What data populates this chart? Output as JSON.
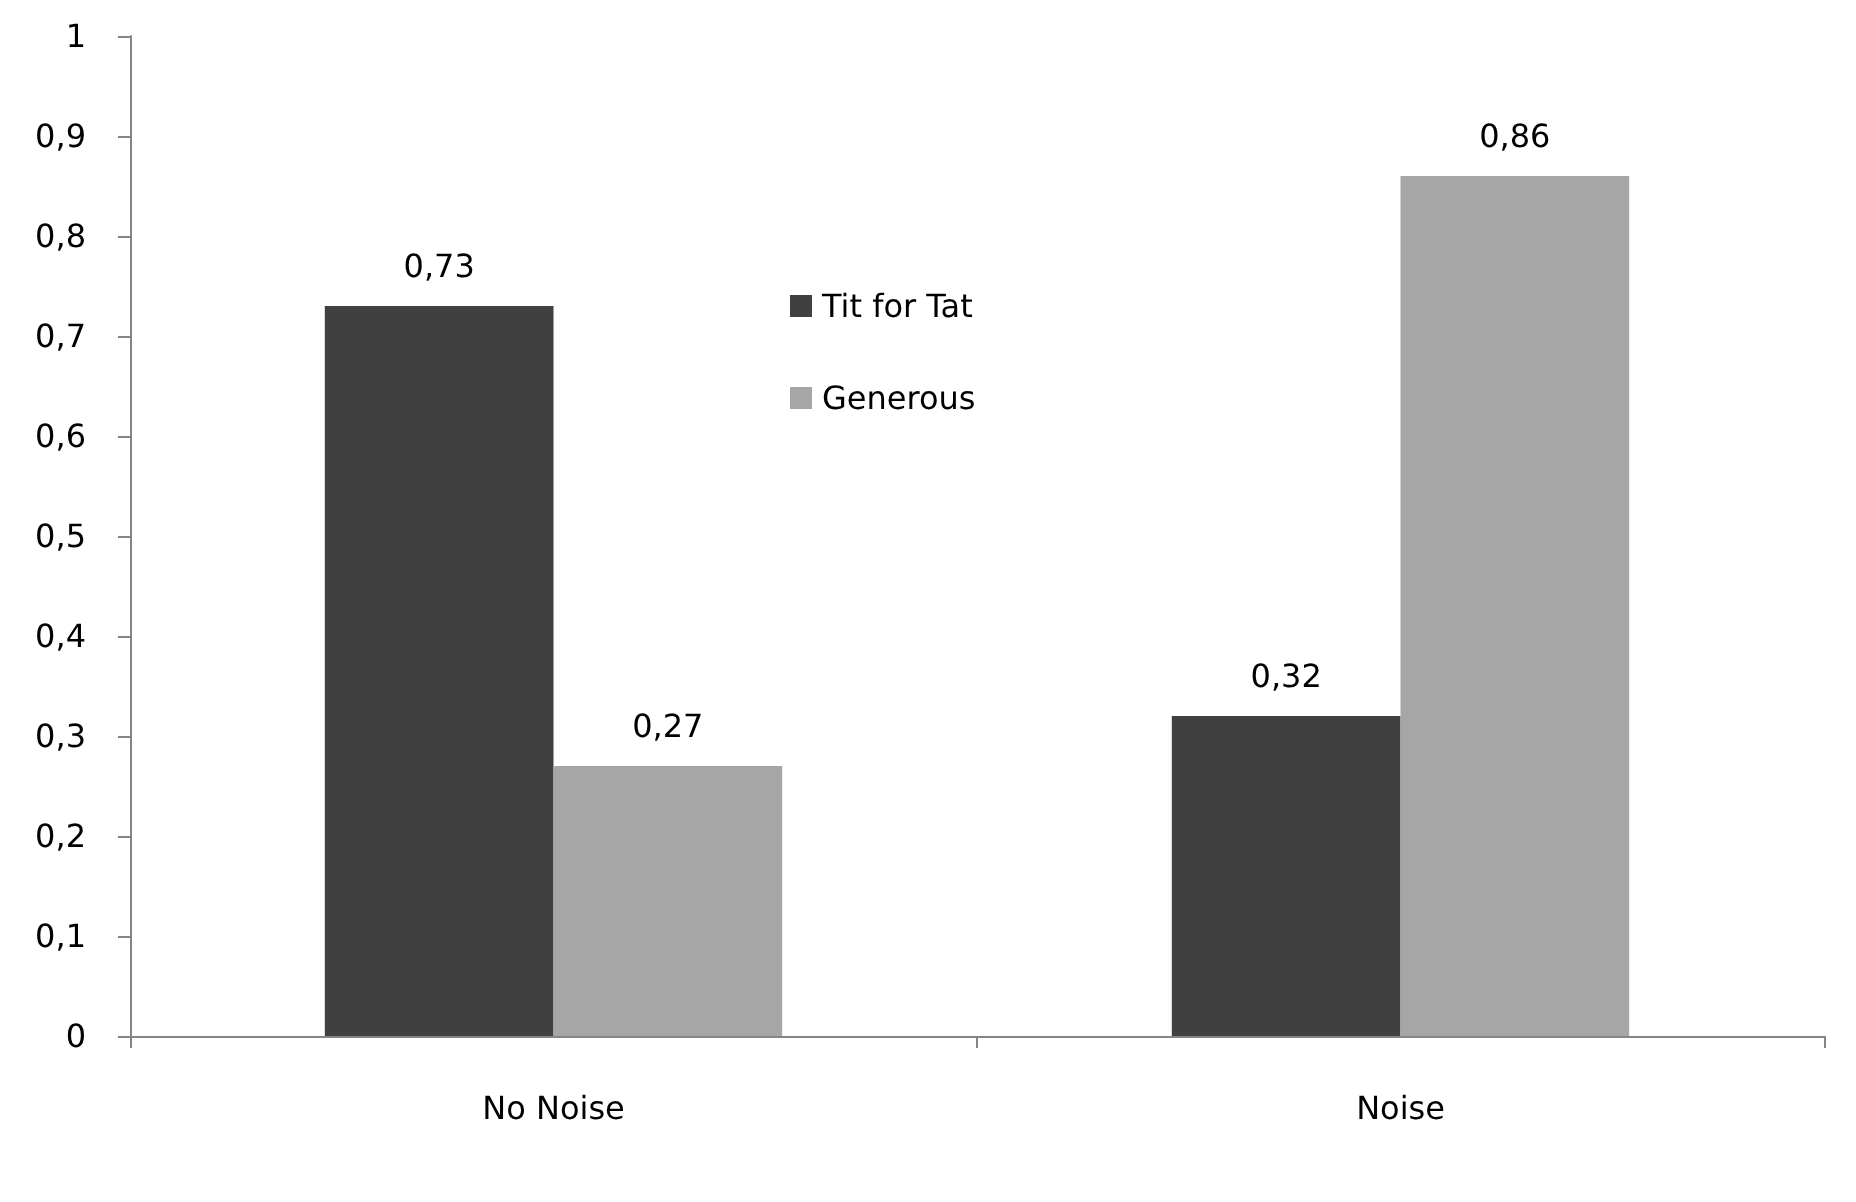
{
  "chart_data": {
    "type": "bar",
    "categories": [
      "No Noise",
      "Noise"
    ],
    "series": [
      {
        "name": "Tit for Tat",
        "color": "#404040",
        "values": [
          0.73,
          0.32
        ],
        "value_labels": [
          "0,73",
          "0,32"
        ]
      },
      {
        "name": "Generous",
        "color": "#a6a6a6",
        "values": [
          0.27,
          0.86
        ],
        "value_labels": [
          "0,27",
          "0,86"
        ]
      }
    ],
    "ylim": [
      0,
      1
    ],
    "yticks": [
      0,
      {
        "value": 0.1,
        "label": "0,1"
      },
      {
        "value": 0.2,
        "label": "0,2"
      },
      {
        "value": 0.3,
        "label": "0,3"
      },
      {
        "value": 0.4,
        "label": "0,4"
      },
      {
        "value": 0.5,
        "label": "0,5"
      },
      {
        "value": 0.6,
        "label": "0,6"
      },
      {
        "value": 0.7,
        "label": "0,7"
      },
      {
        "value": 0.8,
        "label": "0,8"
      },
      {
        "value": 0.9,
        "label": "0,9"
      },
      1
    ],
    "grid": false,
    "legend": "top"
  }
}
